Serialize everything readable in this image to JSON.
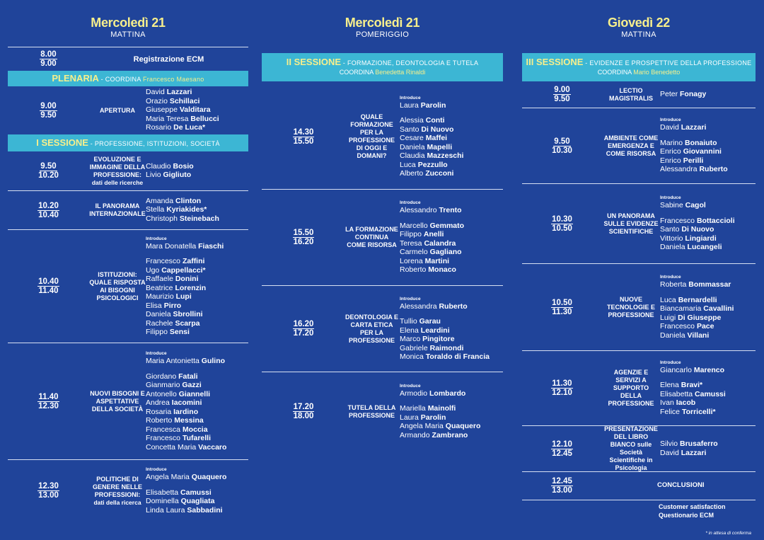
{
  "col1": {
    "day": "Mercoledì 21",
    "part": "MATTINA",
    "reg_time1": "8.00",
    "reg_time2": "9.00",
    "reg_label": "Registrazione ECM",
    "plenaria": {
      "title": "PLENARIA",
      "coord_label": " - COORDINA ",
      "coord": "Francesco Maesano"
    },
    "apertura": {
      "t1": "9.00",
      "t2": "9.50",
      "title": "APERTURA",
      "names": [
        [
          "David ",
          "Lazzari"
        ],
        [
          "Orazio ",
          "Schillaci"
        ],
        [
          "Giuseppe ",
          "Valditara"
        ],
        [
          "Maria Teresa ",
          "Bellucci"
        ],
        [
          "Rosario ",
          "De Luca*"
        ]
      ]
    },
    "sessione1": {
      "title": "I SESSIONE",
      "sub": " - PROFESSIONE, ISTITUZIONI, SOCIETÀ"
    },
    "evoluzione": {
      "t1": "9.50",
      "t2": "10.20",
      "title": "EVOLUZIONE E IMMAGINE DELLA PROFESSIONE:",
      "title2": "dati delle ricerche",
      "names": [
        [
          "Claudio ",
          "Bosio"
        ],
        [
          "Livio ",
          "Gigliuto"
        ]
      ]
    },
    "panorama": {
      "t1": "10.20",
      "t2": "10.40",
      "title": "IL PANORAMA INTERNAZIONALE",
      "names": [
        [
          "Amanda ",
          "Clinton"
        ],
        [
          "Stella ",
          "Kyriakides*"
        ],
        [
          "Christoph ",
          "Steinebach"
        ]
      ]
    },
    "istituzioni": {
      "t1": "10.40",
      "t2": "11.40",
      "title": "ISTITUZIONI: QUALE RISPOSTA AI BISOGNI PSICOLOGICI",
      "intro": "Introduce",
      "intro_name": [
        "Mara Donatella ",
        "Fiaschi"
      ],
      "names": [
        [
          "Francesco ",
          "Zaffini"
        ],
        [
          "Ugo ",
          "Cappellacci*"
        ],
        [
          "Raffaele ",
          "Donini"
        ],
        [
          "Beatrice ",
          "Lorenzin"
        ],
        [
          "Maurizio ",
          "Lupi"
        ],
        [
          "Elisa ",
          "Pirro"
        ],
        [
          "Daniela ",
          "Sbrollini"
        ],
        [
          "Rachele ",
          "Scarpa"
        ],
        [
          "Filippo ",
          "Sensi"
        ]
      ]
    },
    "bisogni": {
      "t1": "11.40",
      "t2": "12.30",
      "title": "NUOVI BISOGNI E ASPETTATIVE DELLA SOCIETÀ",
      "intro": "Introduce",
      "intro_name": [
        "Maria Antonietta ",
        "Gulino"
      ],
      "names": [
        [
          "Giordano ",
          "Fatali"
        ],
        [
          "Gianmario ",
          "Gazzi"
        ],
        [
          "Antonello ",
          "Giannelli"
        ],
        [
          "Andrea ",
          "Iacomini"
        ],
        [
          "Rosaria ",
          "Iardino"
        ],
        [
          "Roberto ",
          "Messina"
        ],
        [
          "Francesca ",
          "Moccia"
        ],
        [
          "Francesco ",
          "Tufarelli"
        ],
        [
          "Concetta Maria ",
          "Vaccaro"
        ]
      ]
    },
    "politiche": {
      "t1": "12.30",
      "t2": "13.00",
      "title": "POLITICHE DI GENERE NELLE PROFESSIONI:",
      "title2": "dati della ricerca",
      "intro": "Introduce",
      "intro_name": [
        "Angela Maria ",
        "Quaquero"
      ],
      "names": [
        [
          "Elisabetta ",
          "Camussi"
        ],
        [
          "Dominella ",
          "Quagliata"
        ],
        [
          "Linda Laura ",
          "Sabbadini"
        ]
      ]
    }
  },
  "col2": {
    "day": "Mercoledì 21",
    "part": "POMERIGGIO",
    "sessione2": {
      "title": "II SESSIONE",
      "sub": " - FORMAZIONE, DEONTOLOGIA E TUTELA",
      "coord_label": "COORDINA ",
      "coord": "Benedetta Rinaldi"
    },
    "quale": {
      "t1": "14.30",
      "t2": "15.50",
      "title": "QUALE FORMAZIONE PER LA PROFESSIONE DI OGGI E DOMANI?",
      "intro": "Introduce",
      "intro_name": [
        "Laura ",
        "Parolin"
      ],
      "names": [
        [
          "Alessia ",
          "Conti"
        ],
        [
          "Santo ",
          "Di Nuovo"
        ],
        [
          "Cesare ",
          "Maffei"
        ],
        [
          "Daniela ",
          "Mapelli"
        ],
        [
          "Claudia ",
          "Mazzeschi"
        ],
        [
          "Luca ",
          "Pezzullo"
        ],
        [
          "Alberto ",
          "Zucconi"
        ]
      ]
    },
    "continua": {
      "t1": "15.50",
      "t2": "16.20",
      "title": "LA FORMAZIONE CONTINUA COME RISORSA",
      "intro": "Introduce",
      "intro_name": [
        "Alessandro ",
        "Trento"
      ],
      "names": [
        [
          "Marcello ",
          "Gemmato"
        ],
        [
          "Filippo ",
          "Anelli"
        ],
        [
          "Teresa ",
          "Calandra"
        ],
        [
          "Carmelo ",
          "Gagliano"
        ],
        [
          "Lorena ",
          "Martini"
        ],
        [
          "Roberto ",
          "Monaco"
        ]
      ]
    },
    "deontologia": {
      "t1": "16.20",
      "t2": "17.20",
      "title": "DEONTOLOGIA E CARTA ETICA PER LA PROFESSIONE",
      "intro": "Introduce",
      "intro_name": [
        "Alessandra ",
        "Ruberto"
      ],
      "names": [
        [
          "Tullio ",
          "Garau"
        ],
        [
          "Elena ",
          "Leardini"
        ],
        [
          "Marco ",
          "Pingitore"
        ],
        [
          "Gabriele ",
          "Raimondi"
        ],
        [
          "Monica ",
          "Toraldo di Francia"
        ]
      ]
    },
    "tutela": {
      "t1": "17.20",
      "t2": "18.00",
      "title": "TUTELA DELLA PROFESSIONE",
      "intro": "Introduce",
      "intro_name": [
        "Armodio ",
        "Lombardo"
      ],
      "names": [
        [
          "Mariella ",
          "Mainolfi"
        ],
        [
          "Laura ",
          "Parolin"
        ],
        [
          "Angela Maria ",
          "Quaquero"
        ],
        [
          "Armando ",
          "Zambrano"
        ]
      ]
    }
  },
  "col3": {
    "day": "Giovedì 22",
    "part": "MATTINA",
    "sessione3": {
      "title": "III SESSIONE",
      "sub": " - EVIDENZE E PROSPETTIVE DELLA PROFESSIONE",
      "coord_label": "COORDINA ",
      "coord": "Mario Benedetto"
    },
    "lectio": {
      "t1": "9.00",
      "t2": "9.50",
      "title": "LECTIO MAGISTRALIS",
      "names": [
        [
          "Peter ",
          "Fonagy"
        ]
      ]
    },
    "ambiente": {
      "t1": "9.50",
      "t2": "10.30",
      "title": "AMBIENTE COME EMERGENZA E COME RISORSA",
      "intro": "Introduce",
      "intro_name": [
        "David ",
        "Lazzari"
      ],
      "names": [
        [
          "Marino ",
          "Bonaiuto"
        ],
        [
          "Enrico ",
          "Giovannini"
        ],
        [
          "Enrico ",
          "Perilli"
        ],
        [
          "Alessandra ",
          "Ruberto"
        ]
      ]
    },
    "evidenze": {
      "t1": "10.30",
      "t2": "10.50",
      "title": "UN PANORAMA SULLE EVIDENZE SCIENTIFICHE",
      "intro": "Introduce",
      "intro_name": [
        "Sabine ",
        "Cagol"
      ],
      "names": [
        [
          "Francesco ",
          "Bottaccioli"
        ],
        [
          "Santo ",
          "Di Nuovo"
        ],
        [
          "Vittorio ",
          "Lingiardi"
        ],
        [
          "Daniela ",
          "Lucangeli"
        ]
      ]
    },
    "tecnologie": {
      "t1": "10.50",
      "t2": "11.30",
      "title": "NUOVE TECNOLOGIE E PROFESSIONE",
      "intro": "Introduce",
      "intro_name": [
        "Roberta ",
        "Bommassar"
      ],
      "names": [
        [
          "Luca ",
          "Bernardelli"
        ],
        [
          "Biancamaria ",
          "Cavallini"
        ],
        [
          "Luigi ",
          "Di Giuseppe"
        ],
        [
          "Francesco ",
          "Pace"
        ],
        [
          "Daniela ",
          "Villani"
        ]
      ]
    },
    "agenzie": {
      "t1": "11.30",
      "t2": "12.10",
      "title": "AGENZIE E SERVIZI A SUPPORTO DELLA PROFESSIONE",
      "intro": "Introduce",
      "intro_name": [
        "Giancarlo ",
        "Marenco"
      ],
      "names": [
        [
          "Elena ",
          "Bravi*"
        ],
        [
          "Elisabetta ",
          "Camussi"
        ],
        [
          "Ivan ",
          "Iacob"
        ],
        [
          "Felice ",
          "Torricelli*"
        ]
      ]
    },
    "libro": {
      "t1": "12.10",
      "t2": "12.45",
      "title": "PRESENTAZIONE DEL LIBRO BIANCO sulle Società Scientifiche in Psicologia",
      "names": [
        [
          "Silvio ",
          "Brusaferro"
        ],
        [
          "David ",
          "Lazzari"
        ]
      ]
    },
    "conclusioni": {
      "t1": "12.45",
      "t2": "13.00",
      "title": "CONCLUSIONI"
    },
    "customer1": "Customer satisfaction",
    "customer2": "Questionario ECM",
    "footnote": "* in attesa di conferma"
  }
}
